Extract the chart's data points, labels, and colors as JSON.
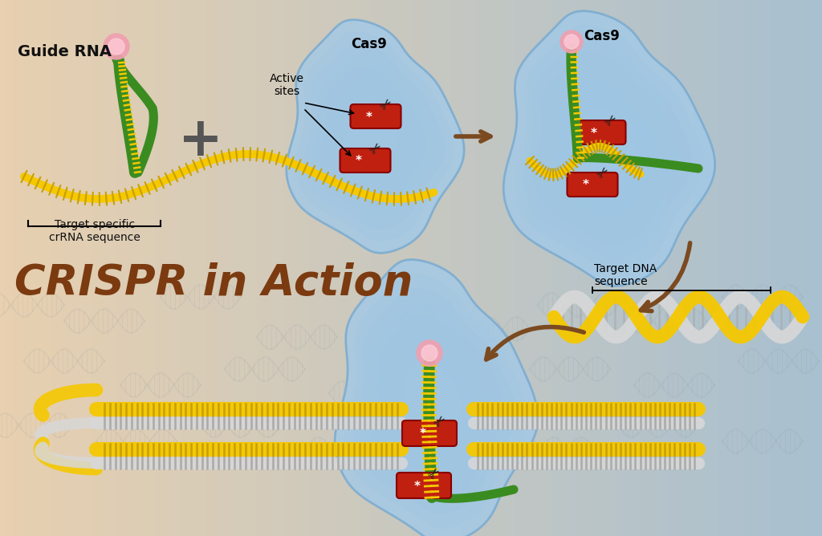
{
  "title": "CRISPR in Action",
  "title_color": "#7B3A10",
  "title_fontsize": 38,
  "bg_top_color": "#E8D0B0",
  "bg_bottom_color": "#A8C0D0",
  "label_guide_rna": "Guide RNA",
  "label_target_specific": "Target specific\ncrRNA sequence",
  "label_active_sites": "Active\nsites",
  "label_cas9": "Cas9",
  "label_target_dna": "Target DNA\nsequence",
  "yellow_color": "#F5C800",
  "yellow_dark": "#C8A000",
  "green_color": "#3A8C20",
  "green_light": "#5AB030",
  "pink_color": "#F0A0B0",
  "red_color": "#C02010",
  "blue_cas9_light": "#A8CCE8",
  "blue_cas9_mid": "#78AAD0",
  "blue_cas9_dark": "#5080A8",
  "white_dna": "#D8D8D8",
  "black_color": "#111111",
  "brown_arrow": "#7B4A20",
  "scissor_color": "#222222"
}
